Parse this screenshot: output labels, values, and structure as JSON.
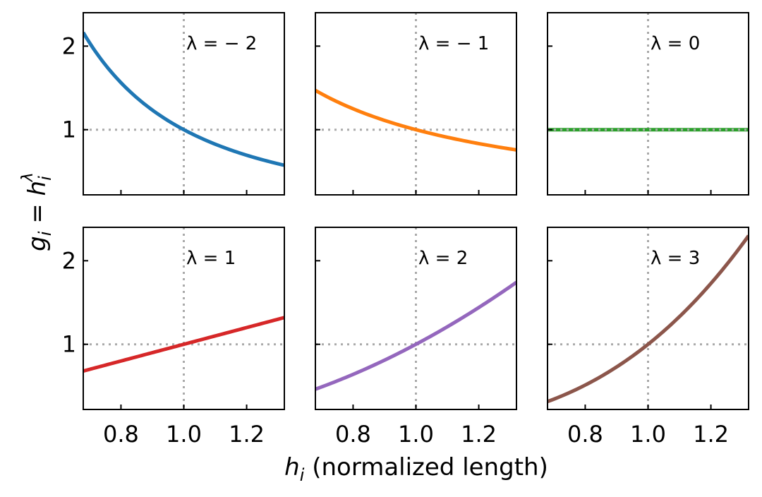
{
  "chart_data": {
    "type": "line",
    "title": "",
    "layout": "2x3 small multiples, shared axes",
    "xlabel": "h_i (normalized length)",
    "xlabel_parts": {
      "symbol": "h",
      "sub": "i",
      "rest": " (normalized length)"
    },
    "ylabel": "g_i = h_i^λ",
    "ylabel_parts": {
      "g": "g",
      "g_sub": "i",
      "eq": " = ",
      "h": "h",
      "h_sub": "i",
      "h_sup": "λ"
    },
    "xlim": [
      0.68,
      1.32
    ],
    "ylim": [
      0.22,
      2.4
    ],
    "xticks": [
      0.8,
      1.0,
      1.2
    ],
    "xtick_labels": [
      "0.8",
      "1.0",
      "1.2"
    ],
    "yticks": [
      1,
      2
    ],
    "ytick_labels": [
      "1",
      "2"
    ],
    "reference_lines": {
      "x": 1.0,
      "y": 1.0,
      "style": "dotted",
      "color": "#aaaaaa"
    },
    "series": [
      {
        "name": "λ = −2",
        "label_text": "λ = − 2",
        "lambda": -2,
        "color": "#1f77b4",
        "function": "g = h^-2",
        "x": [
          0.68,
          0.8,
          1.0,
          1.2,
          1.32
        ],
        "y": [
          2.163,
          1.563,
          1.0,
          0.694,
          0.574
        ]
      },
      {
        "name": "λ = −1",
        "label_text": "λ = − 1",
        "lambda": -1,
        "color": "#ff7f0e",
        "function": "g = h^-1",
        "x": [
          0.68,
          0.8,
          1.0,
          1.2,
          1.32
        ],
        "y": [
          1.471,
          1.25,
          1.0,
          0.833,
          0.758
        ]
      },
      {
        "name": "λ = 0",
        "label_text": "λ = 0",
        "lambda": 0,
        "color": "#2ca02c",
        "function": "g = h^0",
        "x": [
          0.68,
          0.8,
          1.0,
          1.2,
          1.32
        ],
        "y": [
          1.0,
          1.0,
          1.0,
          1.0,
          1.0
        ]
      },
      {
        "name": "λ = 1",
        "label_text": "λ = 1",
        "lambda": 1,
        "color": "#d62728",
        "function": "g = h^1",
        "x": [
          0.68,
          0.8,
          1.0,
          1.2,
          1.32
        ],
        "y": [
          0.68,
          0.8,
          1.0,
          1.2,
          1.32
        ]
      },
      {
        "name": "λ = 2",
        "label_text": "λ = 2",
        "lambda": 2,
        "color": "#9467bd",
        "function": "g = h^2",
        "x": [
          0.68,
          0.8,
          1.0,
          1.2,
          1.32
        ],
        "y": [
          0.462,
          0.64,
          1.0,
          1.44,
          1.742
        ]
      },
      {
        "name": "λ = 3",
        "label_text": "λ = 3",
        "lambda": 3,
        "color": "#8c564b",
        "function": "g = h^3",
        "x": [
          0.68,
          0.8,
          1.0,
          1.2,
          1.32
        ],
        "y": [
          0.314,
          0.512,
          1.0,
          1.728,
          2.3
        ]
      }
    ]
  }
}
